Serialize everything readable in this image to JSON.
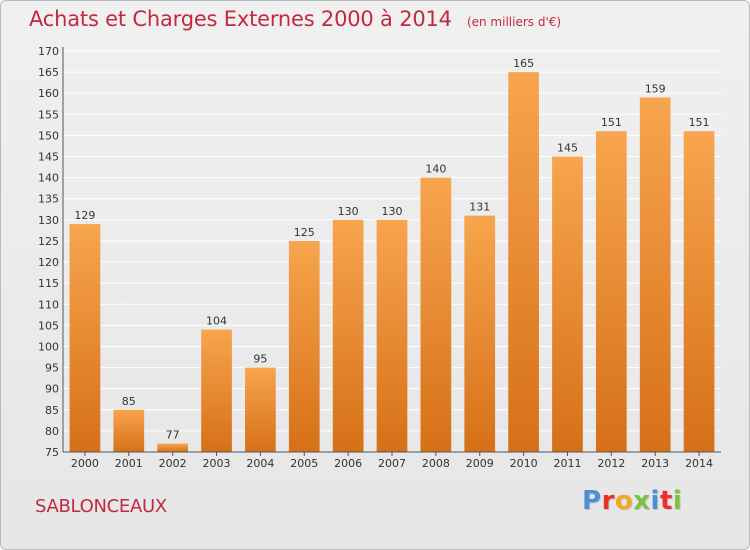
{
  "header": {
    "title": "Achats et Charges Externes 2000 à 2014",
    "unit": "(en milliers d'€)"
  },
  "footer": {
    "town": "SABLONCEAUX",
    "logo_text": "Proxiti",
    "logo_colors": [
      "#4a90d9",
      "#e8312a",
      "#f5a623",
      "#7cc242",
      "#4a90d9",
      "#e8312a",
      "#7cc242"
    ]
  },
  "colors": {
    "bar_light": "#f7a54e",
    "bar_dark": "#d67018",
    "title": "#c22a40",
    "grid": "#ffffff"
  },
  "chart_data": {
    "type": "bar",
    "title": "Achats et Charges Externes 2000 à 2014",
    "subtitle": "(en milliers d'€)",
    "xlabel": "",
    "ylabel": "",
    "categories": [
      "2000",
      "2001",
      "2002",
      "2003",
      "2004",
      "2005",
      "2006",
      "2007",
      "2008",
      "2009",
      "2010",
      "2011",
      "2012",
      "2013",
      "2014"
    ],
    "values": [
      129,
      85,
      77,
      104,
      95,
      125,
      130,
      130,
      140,
      131,
      165,
      145,
      151,
      159,
      151
    ],
    "ylim": [
      75,
      170
    ],
    "yticks": [
      75,
      80,
      85,
      90,
      95,
      100,
      105,
      110,
      115,
      120,
      125,
      130,
      135,
      140,
      145,
      150,
      155,
      160,
      165,
      170
    ],
    "grid": true,
    "legend": "none"
  }
}
